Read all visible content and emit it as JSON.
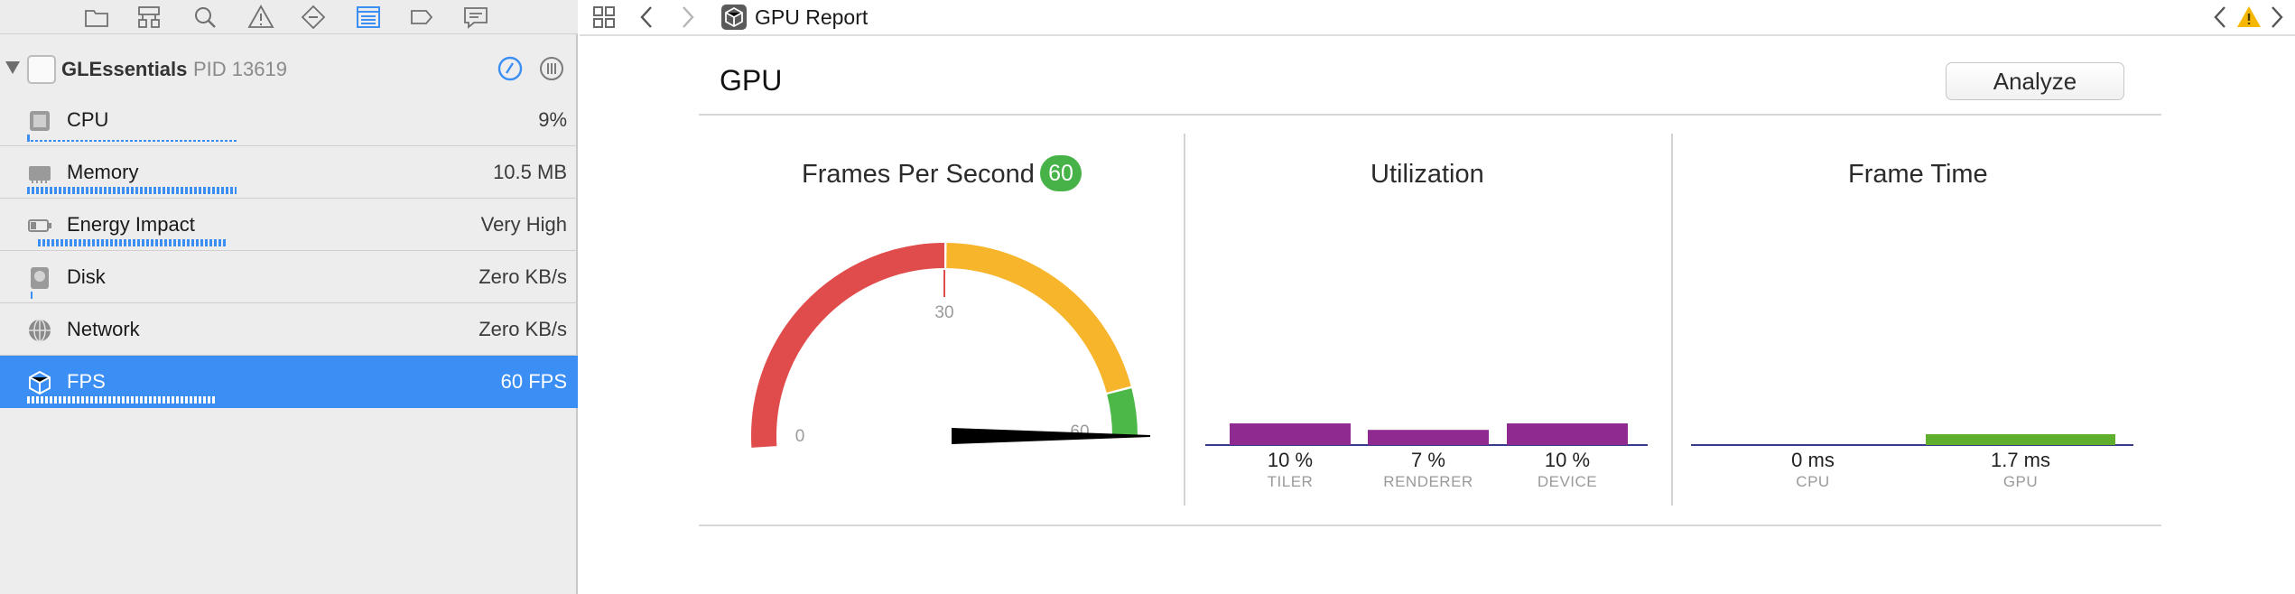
{
  "navigator": {
    "process": {
      "name": "GLEssentials",
      "pid": "PID 13619"
    },
    "gauges": [
      {
        "label": "CPU",
        "value": "9%"
      },
      {
        "label": "Memory",
        "value": "10.5 MB"
      },
      {
        "label": "Energy Impact",
        "value": "Very High"
      },
      {
        "label": "Disk",
        "value": "Zero KB/s"
      },
      {
        "label": "Network",
        "value": "Zero KB/s"
      },
      {
        "label": "FPS",
        "value": "60 FPS"
      }
    ],
    "selected_gauge": "FPS"
  },
  "editor": {
    "breadcrumb_title": "GPU Report",
    "report_title": "GPU",
    "analyze_label": "Analyze"
  },
  "panels": {
    "fps": {
      "title": "Frames Per Second",
      "badge": "60"
    },
    "utilization": {
      "title": "Utilization"
    },
    "frame_time": {
      "title": "Frame Time"
    }
  },
  "colors": {
    "accent": "#3b8ff4",
    "gauge_red": "#e04c4c",
    "gauge_orange": "#f7b52c",
    "gauge_green": "#4cb848",
    "util_bar": "#8e2a90",
    "frame_gpu_bar": "#5fae2e",
    "warning": "#f5b700"
  },
  "chart_data": [
    {
      "type": "gauge",
      "title": "Frames Per Second",
      "min": 0,
      "max": 60,
      "ticks": [
        "0",
        "30",
        "60"
      ],
      "value": 60,
      "zones": [
        {
          "from": 0,
          "to": 30,
          "color": "red"
        },
        {
          "from": 30,
          "to": 55,
          "color": "orange"
        },
        {
          "from": 55,
          "to": 60,
          "color": "green"
        }
      ]
    },
    {
      "type": "bar",
      "title": "Utilization",
      "categories": [
        "TILER",
        "RENDERER",
        "DEVICE"
      ],
      "values": [
        10,
        7,
        10
      ],
      "value_labels": [
        "10 %",
        "7 %",
        "10 %"
      ],
      "unit": "%"
    },
    {
      "type": "bar",
      "title": "Frame Time",
      "categories": [
        "CPU",
        "GPU"
      ],
      "values": [
        0,
        1.7
      ],
      "value_labels": [
        "0 ms",
        "1.7 ms"
      ],
      "unit": "ms"
    }
  ]
}
